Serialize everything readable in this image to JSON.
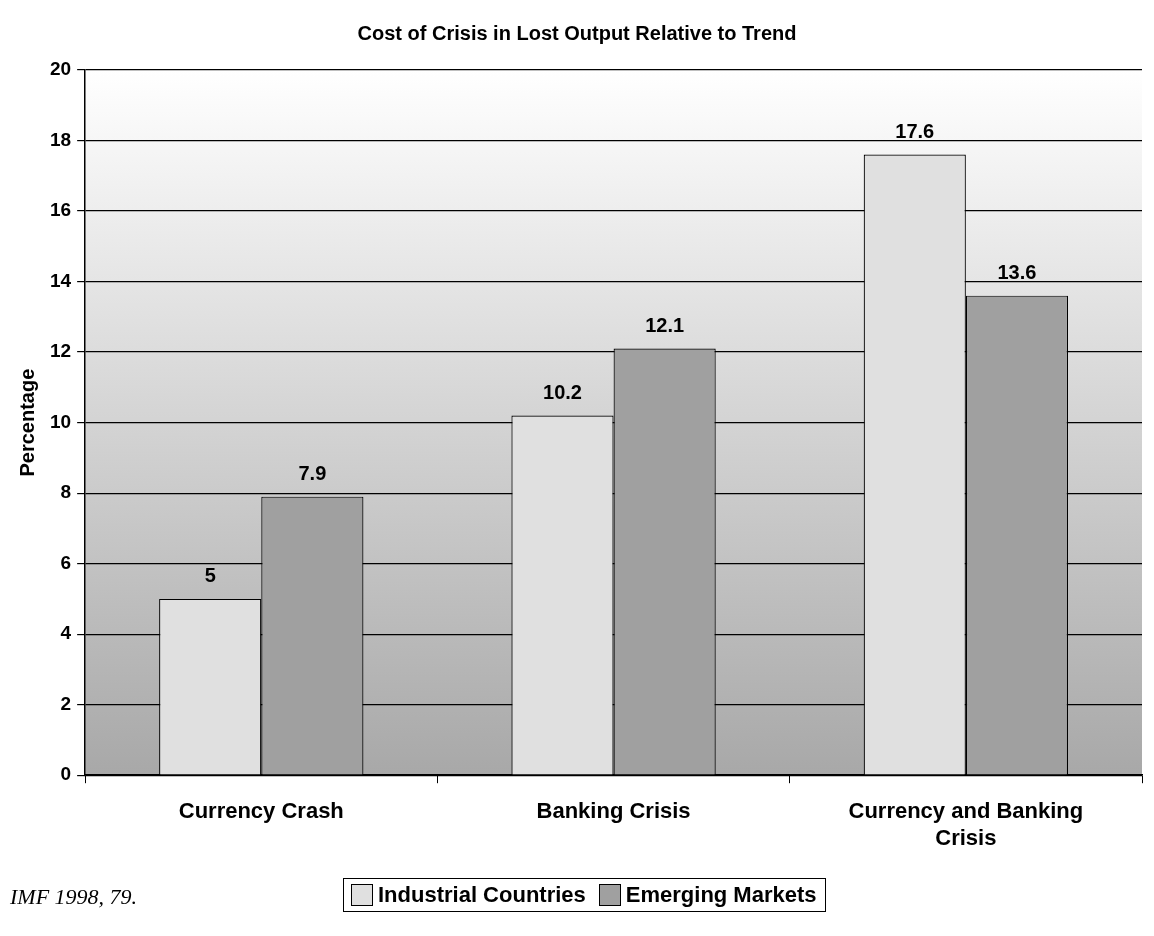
{
  "chart_data": {
    "type": "bar",
    "title": "Cost of Crisis in Lost Output Relative to Trend",
    "ylabel": "Percentage",
    "categories": [
      "Currency Crash",
      "Banking Crisis",
      "Currency and Banking Crisis"
    ],
    "series": [
      {
        "name": "Industrial Countries",
        "color": "#e0e0e0",
        "values": [
          5,
          10.2,
          17.6
        ]
      },
      {
        "name": "Emerging Markets",
        "color": "#a0a0a0",
        "values": [
          7.9,
          12.1,
          13.6
        ]
      }
    ],
    "ylim": [
      0,
      20
    ],
    "yticks": [
      0,
      2,
      4,
      6,
      8,
      10,
      12,
      14,
      16,
      18,
      20
    ],
    "grid": "y",
    "legend": "bottom",
    "data_labels": true,
    "annotations": [
      "IMF 1998, 79."
    ]
  }
}
